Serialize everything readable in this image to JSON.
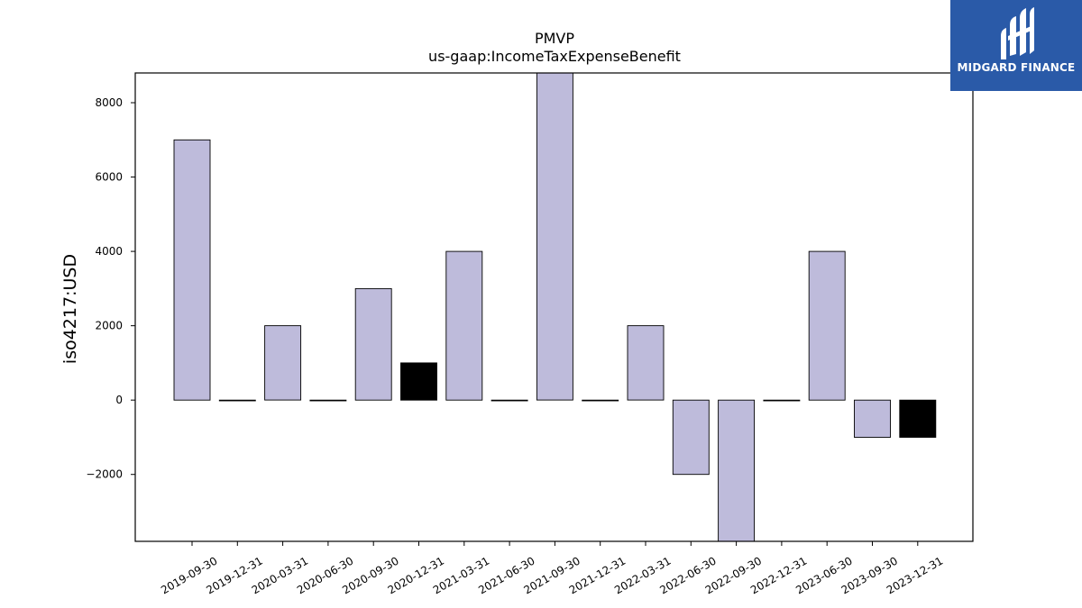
{
  "chart_data": {
    "type": "bar",
    "title": "PMVP",
    "subtitle": "us-gaap:IncomeTaxExpenseBenefit",
    "ylabel": "iso4217:USD",
    "xlabel": "",
    "categories": [
      "2019-09-30",
      "2019-12-31",
      "2020-03-31",
      "2020-06-30",
      "2020-09-30",
      "2020-12-31",
      "2021-03-31",
      "2021-06-30",
      "2021-09-30",
      "2021-12-31",
      "2022-03-31",
      "2022-06-30",
      "2022-09-30",
      "2022-12-31",
      "2023-06-30",
      "2023-09-30",
      "2023-12-31"
    ],
    "values": [
      7000,
      0,
      2000,
      0,
      3000,
      1000,
      4000,
      0,
      9000,
      0,
      2000,
      -2000,
      -4000,
      0,
      4000,
      -1000,
      -1000
    ],
    "highlighted": [
      false,
      false,
      false,
      false,
      false,
      true,
      false,
      false,
      false,
      false,
      false,
      false,
      false,
      false,
      false,
      false,
      true
    ],
    "ylim": [
      -3800,
      8800
    ],
    "yticks": [
      -2000,
      0,
      2000,
      4000,
      6000,
      8000
    ],
    "grid": false,
    "colors": {
      "bar": "#bebbdb",
      "highlight": "#000000",
      "edge": "#000000"
    }
  },
  "logo": {
    "text": "MIDGARD FINANCE",
    "background": "#2a5aa8"
  }
}
